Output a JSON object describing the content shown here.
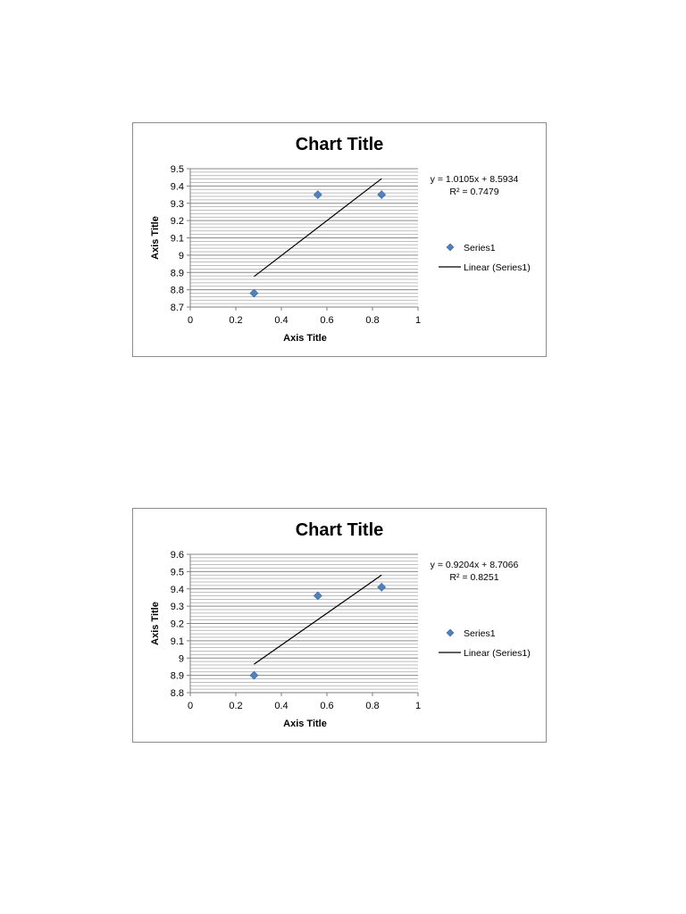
{
  "chart_data": [
    {
      "type": "scatter",
      "title": "Chart Title",
      "xlabel": "Axis Title",
      "ylabel": "Axis Title",
      "xlim": [
        0,
        1
      ],
      "ylim": [
        8.7,
        9.5
      ],
      "x_ticks": [
        "0",
        "0.2",
        "0.4",
        "0.6",
        "0.8",
        "1"
      ],
      "y_ticks": [
        "8.7",
        "8.8",
        "8.9",
        "9",
        "9.1",
        "9.2",
        "9.3",
        "9.4",
        "9.5"
      ],
      "grid": true,
      "minor_grid_step": 0.02,
      "legend_position": "right",
      "series": [
        {
          "name": "Series1",
          "marker": "diamond",
          "color": "#4F81BD",
          "x": [
            0.28,
            0.56,
            0.84
          ],
          "y": [
            8.78,
            9.35,
            9.35
          ]
        }
      ],
      "trendline": {
        "name": "Linear (Series1)",
        "slope": 1.0105,
        "intercept": 8.5934,
        "x_range": [
          0.28,
          0.84
        ],
        "color": "#000000",
        "equation_text": "y = 1.0105x + 8.5934",
        "r2_text": "R² = 0.7479"
      }
    },
    {
      "type": "scatter",
      "title": "Chart Title",
      "xlabel": "Axis Title",
      "ylabel": "Axis Title",
      "xlim": [
        0,
        1
      ],
      "ylim": [
        8.8,
        9.6
      ],
      "x_ticks": [
        "0",
        "0.2",
        "0.4",
        "0.6",
        "0.8",
        "1"
      ],
      "y_ticks": [
        "8.8",
        "8.9",
        "9",
        "9.1",
        "9.2",
        "9.3",
        "9.4",
        "9.5",
        "9.6"
      ],
      "grid": true,
      "minor_grid_step": 0.02,
      "legend_position": "right",
      "series": [
        {
          "name": "Series1",
          "marker": "diamond",
          "color": "#4F81BD",
          "x": [
            0.28,
            0.56,
            0.84
          ],
          "y": [
            8.9,
            9.36,
            9.41
          ]
        }
      ],
      "trendline": {
        "name": "Linear (Series1)",
        "slope": 0.9204,
        "intercept": 8.7066,
        "x_range": [
          0.28,
          0.84
        ],
        "color": "#000000",
        "equation_text": "y = 0.9204x + 8.7066",
        "r2_text": "R² = 0.8251"
      }
    }
  ]
}
